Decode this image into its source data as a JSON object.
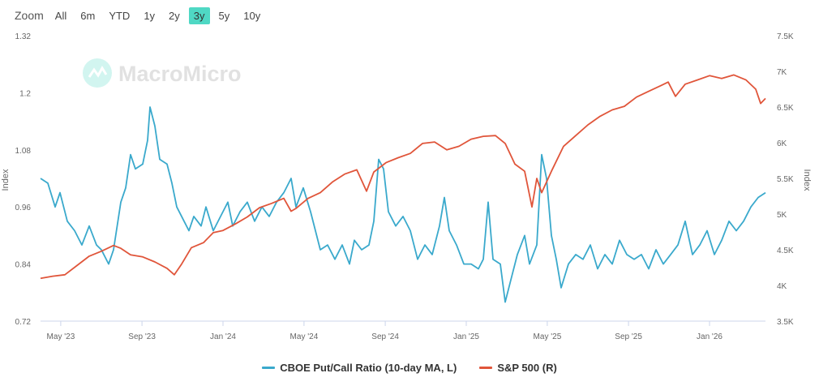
{
  "zoom": {
    "label": "Zoom",
    "options": [
      "All",
      "6m",
      "YTD",
      "1y",
      "2y",
      "3y",
      "5y",
      "10y"
    ],
    "active": "3y",
    "active_color": "#4fd8c4"
  },
  "watermark": "MacroMicro",
  "chart_data": {
    "type": "line",
    "title": "",
    "x_ticks": [
      "May '23",
      "Sep '23",
      "Jan '24",
      "May '24",
      "Sep '24",
      "Jan '25",
      "May '25",
      "Sep '25",
      "Jan '26"
    ],
    "x_tick_positions": [
      2023.333,
      2023.667,
      2024.0,
      2024.333,
      2024.667,
      2025.0,
      2025.333,
      2025.667,
      2026.0
    ],
    "xlim": [
      2023.25,
      2026.23
    ],
    "ylabel_left": "Index",
    "ylabel_right": "Index",
    "ylim_left": [
      0.72,
      1.32
    ],
    "yticks_left": [
      "0.72",
      "0.84",
      "0.96",
      "1.08",
      "1.2",
      "1.32"
    ],
    "ylim_right": [
      3500,
      7500
    ],
    "yticks_right": [
      "3.5K",
      "4K",
      "4.5K",
      "5K",
      "5.5K",
      "6K",
      "6.5K",
      "7K",
      "7.5K"
    ],
    "ytick_values_right": [
      3500,
      4000,
      4500,
      5000,
      5500,
      6000,
      6500,
      7000,
      7500
    ],
    "series": [
      {
        "name": "CBOE Put/Call Ratio (10-day MA, L)",
        "axis": "left",
        "color": "#3aa9cc",
        "points": [
          [
            2023.25,
            1.02
          ],
          [
            2023.28,
            1.01
          ],
          [
            2023.31,
            0.96
          ],
          [
            2023.33,
            0.99
          ],
          [
            2023.36,
            0.93
          ],
          [
            2023.39,
            0.91
          ],
          [
            2023.42,
            0.88
          ],
          [
            2023.45,
            0.92
          ],
          [
            2023.48,
            0.88
          ],
          [
            2023.5,
            0.87
          ],
          [
            2023.53,
            0.84
          ],
          [
            2023.55,
            0.87
          ],
          [
            2023.58,
            0.97
          ],
          [
            2023.6,
            1.0
          ],
          [
            2023.62,
            1.07
          ],
          [
            2023.64,
            1.04
          ],
          [
            2023.67,
            1.05
          ],
          [
            2023.69,
            1.1
          ],
          [
            2023.7,
            1.17
          ],
          [
            2023.72,
            1.13
          ],
          [
            2023.74,
            1.06
          ],
          [
            2023.77,
            1.05
          ],
          [
            2023.79,
            1.01
          ],
          [
            2023.81,
            0.96
          ],
          [
            2023.84,
            0.93
          ],
          [
            2023.86,
            0.91
          ],
          [
            2023.88,
            0.94
          ],
          [
            2023.91,
            0.92
          ],
          [
            2023.93,
            0.96
          ],
          [
            2023.96,
            0.91
          ],
          [
            2023.99,
            0.94
          ],
          [
            2024.02,
            0.97
          ],
          [
            2024.04,
            0.92
          ],
          [
            2024.07,
            0.95
          ],
          [
            2024.1,
            0.97
          ],
          [
            2024.13,
            0.93
          ],
          [
            2024.16,
            0.96
          ],
          [
            2024.19,
            0.94
          ],
          [
            2024.22,
            0.97
          ],
          [
            2024.25,
            0.99
          ],
          [
            2024.28,
            1.02
          ],
          [
            2024.3,
            0.96
          ],
          [
            2024.33,
            1.0
          ],
          [
            2024.36,
            0.95
          ],
          [
            2024.38,
            0.91
          ],
          [
            2024.4,
            0.87
          ],
          [
            2024.43,
            0.88
          ],
          [
            2024.46,
            0.85
          ],
          [
            2024.49,
            0.88
          ],
          [
            2024.52,
            0.84
          ],
          [
            2024.54,
            0.89
          ],
          [
            2024.57,
            0.87
          ],
          [
            2024.6,
            0.88
          ],
          [
            2024.62,
            0.93
          ],
          [
            2024.64,
            1.06
          ],
          [
            2024.66,
            1.04
          ],
          [
            2024.68,
            0.95
          ],
          [
            2024.71,
            0.92
          ],
          [
            2024.74,
            0.94
          ],
          [
            2024.77,
            0.91
          ],
          [
            2024.8,
            0.85
          ],
          [
            2024.83,
            0.88
          ],
          [
            2024.86,
            0.86
          ],
          [
            2024.89,
            0.92
          ],
          [
            2024.91,
            0.98
          ],
          [
            2024.93,
            0.91
          ],
          [
            2024.96,
            0.88
          ],
          [
            2024.99,
            0.84
          ],
          [
            2025.02,
            0.84
          ],
          [
            2025.05,
            0.83
          ],
          [
            2025.07,
            0.85
          ],
          [
            2025.09,
            0.97
          ],
          [
            2025.11,
            0.85
          ],
          [
            2025.14,
            0.84
          ],
          [
            2025.16,
            0.76
          ],
          [
            2025.19,
            0.82
          ],
          [
            2025.21,
            0.86
          ],
          [
            2025.24,
            0.9
          ],
          [
            2025.26,
            0.84
          ],
          [
            2025.29,
            0.88
          ],
          [
            2025.31,
            1.07
          ],
          [
            2025.33,
            1.02
          ],
          [
            2025.35,
            0.9
          ],
          [
            2025.37,
            0.85
          ],
          [
            2025.39,
            0.79
          ],
          [
            2025.42,
            0.84
          ],
          [
            2025.45,
            0.86
          ],
          [
            2025.48,
            0.85
          ],
          [
            2025.51,
            0.88
          ],
          [
            2025.54,
            0.83
          ],
          [
            2025.57,
            0.86
          ],
          [
            2025.6,
            0.84
          ],
          [
            2025.63,
            0.89
          ],
          [
            2025.66,
            0.86
          ],
          [
            2025.69,
            0.85
          ],
          [
            2025.72,
            0.86
          ],
          [
            2025.75,
            0.83
          ],
          [
            2025.78,
            0.87
          ],
          [
            2025.81,
            0.84
          ],
          [
            2025.84,
            0.86
          ],
          [
            2025.87,
            0.88
          ],
          [
            2025.9,
            0.93
          ],
          [
            2025.93,
            0.86
          ],
          [
            2025.96,
            0.88
          ],
          [
            2025.99,
            0.91
          ],
          [
            2026.02,
            0.86
          ],
          [
            2026.05,
            0.89
          ],
          [
            2026.08,
            0.93
          ],
          [
            2026.11,
            0.91
          ],
          [
            2026.14,
            0.93
          ],
          [
            2026.17,
            0.96
          ],
          [
            2026.2,
            0.98
          ],
          [
            2026.23,
            0.99
          ]
        ]
      },
      {
        "name": "S&P 500 (R)",
        "axis": "right",
        "color": "#e0553a",
        "points": [
          [
            2023.25,
            4100
          ],
          [
            2023.3,
            4130
          ],
          [
            2023.35,
            4150
          ],
          [
            2023.4,
            4280
          ],
          [
            2023.45,
            4410
          ],
          [
            2023.5,
            4480
          ],
          [
            2023.55,
            4560
          ],
          [
            2023.58,
            4520
          ],
          [
            2023.62,
            4430
          ],
          [
            2023.67,
            4400
          ],
          [
            2023.72,
            4330
          ],
          [
            2023.77,
            4240
          ],
          [
            2023.8,
            4150
          ],
          [
            2023.83,
            4300
          ],
          [
            2023.87,
            4530
          ],
          [
            2023.92,
            4600
          ],
          [
            2023.96,
            4740
          ],
          [
            2024.0,
            4770
          ],
          [
            2024.05,
            4860
          ],
          [
            2024.1,
            4960
          ],
          [
            2024.15,
            5090
          ],
          [
            2024.2,
            5150
          ],
          [
            2024.25,
            5220
          ],
          [
            2024.28,
            5040
          ],
          [
            2024.3,
            5080
          ],
          [
            2024.35,
            5220
          ],
          [
            2024.4,
            5300
          ],
          [
            2024.45,
            5450
          ],
          [
            2024.5,
            5560
          ],
          [
            2024.55,
            5620
          ],
          [
            2024.59,
            5320
          ],
          [
            2024.62,
            5590
          ],
          [
            2024.67,
            5720
          ],
          [
            2024.72,
            5790
          ],
          [
            2024.77,
            5850
          ],
          [
            2024.82,
            5990
          ],
          [
            2024.87,
            6010
          ],
          [
            2024.92,
            5900
          ],
          [
            2024.97,
            5950
          ],
          [
            2025.02,
            6050
          ],
          [
            2025.07,
            6090
          ],
          [
            2025.12,
            6100
          ],
          [
            2025.16,
            5990
          ],
          [
            2025.2,
            5700
          ],
          [
            2025.24,
            5600
          ],
          [
            2025.27,
            5100
          ],
          [
            2025.29,
            5500
          ],
          [
            2025.31,
            5300
          ],
          [
            2025.35,
            5600
          ],
          [
            2025.4,
            5950
          ],
          [
            2025.45,
            6100
          ],
          [
            2025.5,
            6250
          ],
          [
            2025.55,
            6370
          ],
          [
            2025.6,
            6460
          ],
          [
            2025.65,
            6510
          ],
          [
            2025.7,
            6640
          ],
          [
            2025.75,
            6720
          ],
          [
            2025.8,
            6800
          ],
          [
            2025.83,
            6850
          ],
          [
            2025.86,
            6650
          ],
          [
            2025.9,
            6820
          ],
          [
            2025.95,
            6880
          ],
          [
            2026.0,
            6940
          ],
          [
            2026.05,
            6900
          ],
          [
            2026.1,
            6950
          ],
          [
            2026.15,
            6880
          ],
          [
            2026.19,
            6750
          ],
          [
            2026.21,
            6550
          ],
          [
            2026.23,
            6620
          ]
        ]
      }
    ]
  }
}
